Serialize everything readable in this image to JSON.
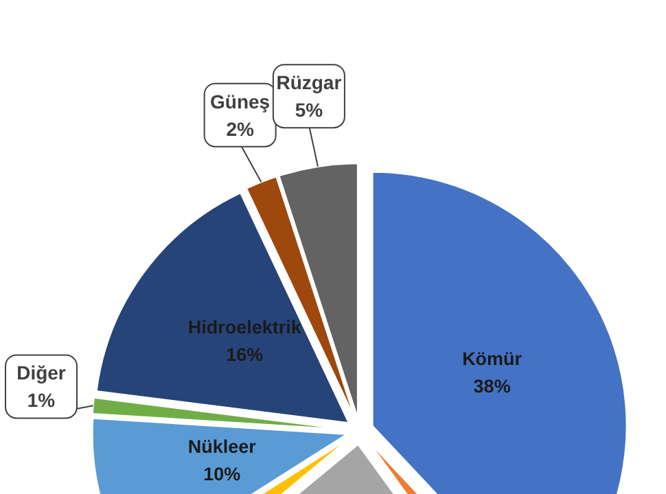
{
  "chart_data": {
    "type": "pie",
    "categories": [
      "Kömür",
      null,
      null,
      null,
      "Nükleer",
      "Diğer",
      "Hidroelektrik",
      "Güneş",
      "Rüzgar"
    ],
    "values": [
      38,
      2,
      24,
      2,
      10,
      1,
      16,
      2,
      5
    ],
    "value_labels": [
      "38%",
      null,
      null,
      null,
      "10%",
      "1%",
      "16%",
      "2%",
      "5%"
    ],
    "colors": [
      "#4472c4",
      "#ed7d31",
      "#a5a5a5",
      "#ffc000",
      "#5b9bd5",
      "#70ad47",
      "#264478",
      "#9e480e",
      "#636363"
    ]
  }
}
